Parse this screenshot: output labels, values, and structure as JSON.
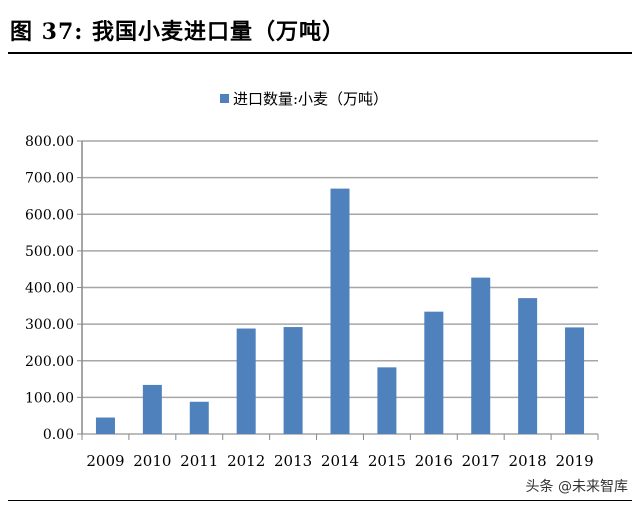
{
  "figure_title": "图  37:  我国小麦进口量（万吨）",
  "watermark": "头条 @未来智库",
  "chart_data": {
    "type": "bar",
    "title": "",
    "xlabel": "",
    "ylabel": "",
    "categories": [
      "2009",
      "2010",
      "2011",
      "2012",
      "2013",
      "2014",
      "2015",
      "2016",
      "2017",
      "2018",
      "2019"
    ],
    "series": [
      {
        "name": "进口数量:小麦（万吨）",
        "values": [
          45,
          134,
          88,
          288,
          292,
          670,
          182,
          334,
          427,
          371,
          291
        ],
        "color": "#4f81bd"
      }
    ],
    "ylim": [
      0,
      800
    ],
    "yticks": [
      "0.00",
      "100.00",
      "200.00",
      "300.00",
      "400.00",
      "500.00",
      "600.00",
      "700.00",
      "800.00"
    ],
    "grid": true,
    "legend": "top"
  }
}
